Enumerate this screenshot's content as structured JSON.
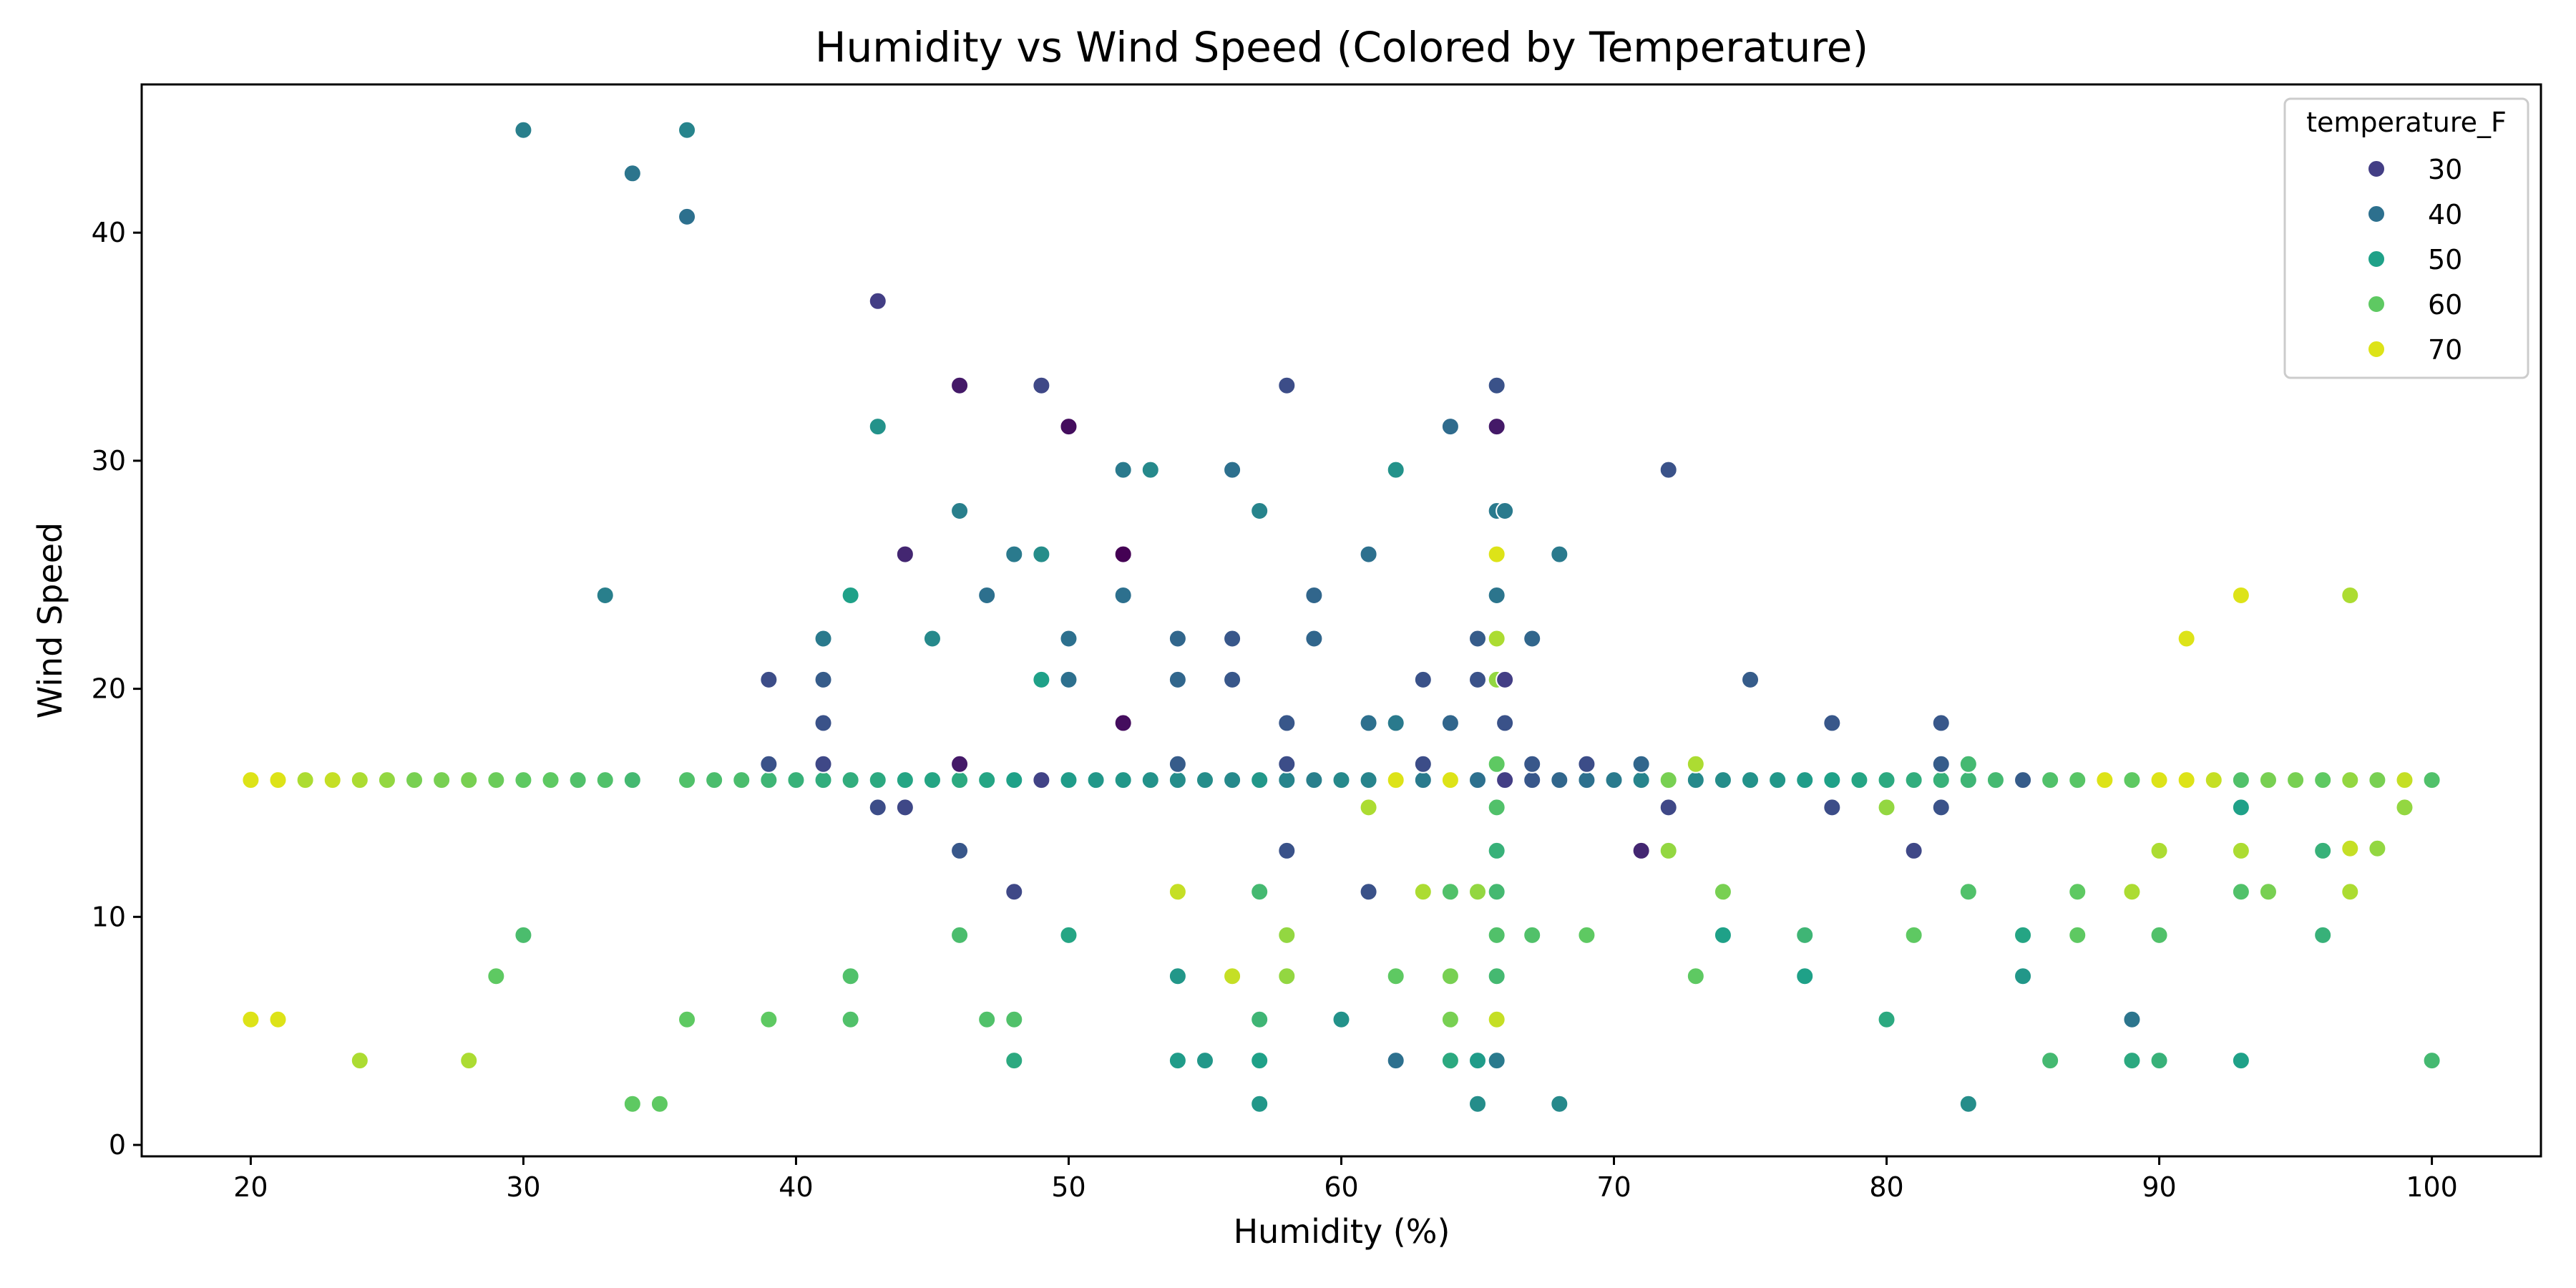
{
  "chart_data": {
    "type": "scatter",
    "title": "Humidity vs Wind Speed (Colored by Temperature)",
    "xlabel": "Humidity (%)",
    "ylabel": "Wind Speed",
    "xlim": [
      16,
      104
    ],
    "ylim": [
      -0.5,
      46.5
    ],
    "xticks": [
      20,
      30,
      40,
      50,
      60,
      70,
      80,
      90,
      100
    ],
    "yticks": [
      0,
      10,
      20,
      30,
      40
    ],
    "grid": false,
    "color_by": "temperature_F",
    "legend": {
      "title": "temperature_F",
      "position": "top-right",
      "entries": [
        {
          "label": "30",
          "color": "#433e85"
        },
        {
          "label": "40",
          "color": "#2d708e"
        },
        {
          "label": "50",
          "color": "#1fa188"
        },
        {
          "label": "60",
          "color": "#5ec962"
        },
        {
          "label": "70",
          "color": "#dde318"
        }
      ]
    },
    "color_scale": [
      [
        25,
        "#440154"
      ],
      [
        30,
        "#433e85"
      ],
      [
        40,
        "#2d708e"
      ],
      [
        50,
        "#1fa188"
      ],
      [
        60,
        "#5ec962"
      ],
      [
        65,
        "#a0da39"
      ],
      [
        70,
        "#dde318"
      ],
      [
        72,
        "#fde725"
      ]
    ],
    "point_fields": [
      "humidity",
      "wind_speed",
      "temperature_F"
    ],
    "points": [
      [
        20,
        16,
        70
      ],
      [
        21,
        16,
        70
      ],
      [
        22,
        16,
        66
      ],
      [
        23,
        16,
        68
      ],
      [
        24,
        16,
        66
      ],
      [
        25,
        16,
        64
      ],
      [
        26,
        16,
        62
      ],
      [
        27,
        16,
        62
      ],
      [
        28,
        16,
        62
      ],
      [
        29,
        16,
        61
      ],
      [
        30,
        16,
        60
      ],
      [
        31,
        16,
        60
      ],
      [
        32,
        16,
        58
      ],
      [
        33,
        16,
        58
      ],
      [
        34,
        16,
        56
      ],
      [
        36,
        16,
        58
      ],
      [
        37,
        16,
        57
      ],
      [
        38,
        16,
        57
      ],
      [
        39,
        16,
        55
      ],
      [
        40,
        16,
        54
      ],
      [
        41,
        16,
        53
      ],
      [
        42,
        16,
        53
      ],
      [
        43,
        16,
        52
      ],
      [
        44,
        16,
        51
      ],
      [
        45,
        16,
        51
      ],
      [
        46,
        16,
        52
      ],
      [
        47,
        16,
        51
      ],
      [
        48,
        16,
        50
      ],
      [
        49,
        16,
        49
      ],
      [
        50,
        16,
        49
      ],
      [
        51,
        16,
        48
      ],
      [
        52,
        16,
        48
      ],
      [
        53,
        16,
        47
      ],
      [
        54,
        16,
        46
      ],
      [
        55,
        16,
        46
      ],
      [
        56,
        16,
        45
      ],
      [
        57,
        16,
        48
      ],
      [
        58,
        16,
        44
      ],
      [
        59,
        16,
        43
      ],
      [
        60,
        16,
        45
      ],
      [
        61,
        16,
        44
      ],
      [
        62,
        16,
        70
      ],
      [
        63,
        16,
        42
      ],
      [
        64,
        16,
        70
      ],
      [
        65,
        16,
        40
      ],
      [
        66,
        16,
        30
      ],
      [
        67,
        16,
        35
      ],
      [
        68,
        16,
        38
      ],
      [
        69,
        16,
        40
      ],
      [
        70,
        16,
        42
      ],
      [
        71,
        16,
        44
      ],
      [
        72,
        16,
        62
      ],
      [
        73,
        16,
        45
      ],
      [
        74,
        16,
        46
      ],
      [
        75,
        16,
        47
      ],
      [
        76,
        16,
        48
      ],
      [
        77,
        16,
        49
      ],
      [
        78,
        16,
        50
      ],
      [
        79,
        16,
        51
      ],
      [
        80,
        16,
        52
      ],
      [
        81,
        16,
        53
      ],
      [
        82,
        16,
        54
      ],
      [
        83,
        16,
        55
      ],
      [
        84,
        16,
        56
      ],
      [
        85,
        16,
        57
      ],
      [
        86,
        16,
        58
      ],
      [
        87,
        16,
        59
      ],
      [
        88,
        16,
        70
      ],
      [
        89,
        16,
        60
      ],
      [
        90,
        16,
        70
      ],
      [
        91,
        16,
        70
      ],
      [
        92,
        16,
        68
      ],
      [
        93,
        16,
        66
      ],
      [
        94,
        16,
        62
      ],
      [
        95,
        16,
        62
      ],
      [
        96,
        16,
        60
      ],
      [
        97,
        16,
        64
      ],
      [
        98,
        16,
        62
      ],
      [
        99,
        16,
        68
      ],
      [
        100,
        16,
        58
      ],
      [
        20,
        5.5,
        70
      ],
      [
        21,
        5.5,
        70
      ],
      [
        24,
        3.7,
        66
      ],
      [
        28,
        3.7,
        66
      ],
      [
        29,
        7.4,
        60
      ],
      [
        30,
        9.2,
        57
      ],
      [
        33,
        24.1,
        43
      ],
      [
        30,
        44.5,
        43
      ],
      [
        34,
        42.6,
        41
      ],
      [
        36,
        44.5,
        44
      ],
      [
        36,
        40.7,
        40
      ],
      [
        34,
        1.8,
        60
      ],
      [
        35,
        1.8,
        60
      ],
      [
        36,
        5.5,
        60
      ],
      [
        39,
        20.4,
        33
      ],
      [
        39,
        16.7,
        34
      ],
      [
        39,
        5.5,
        60
      ],
      [
        41,
        22.2,
        42
      ],
      [
        41,
        20.4,
        36
      ],
      [
        41,
        18.5,
        34
      ],
      [
        41,
        16.7,
        32
      ],
      [
        42,
        24.1,
        50
      ],
      [
        42,
        7.4,
        58
      ],
      [
        42,
        5.5,
        58
      ],
      [
        43,
        37,
        30
      ],
      [
        43,
        31.5,
        47
      ],
      [
        43,
        14.8,
        33
      ],
      [
        44,
        25.9,
        28
      ],
      [
        44,
        14.8,
        32
      ],
      [
        45,
        22.2,
        45
      ],
      [
        46,
        33.3,
        27
      ],
      [
        46,
        27.8,
        43
      ],
      [
        46,
        16.7,
        27
      ],
      [
        46,
        12.9,
        35
      ],
      [
        46,
        9.2,
        57
      ],
      [
        47,
        24.1,
        40
      ],
      [
        47,
        5.5,
        58
      ],
      [
        48,
        25.9,
        42
      ],
      [
        48,
        11.1,
        32
      ],
      [
        48,
        5.5,
        58
      ],
      [
        48,
        3.7,
        52
      ],
      [
        49,
        33.3,
        32
      ],
      [
        49,
        25.9,
        46
      ],
      [
        49,
        20.4,
        50
      ],
      [
        49,
        16,
        31
      ],
      [
        50,
        31.5,
        26
      ],
      [
        50,
        22.2,
        40
      ],
      [
        50,
        20.4,
        40
      ],
      [
        50,
        9.2,
        51
      ],
      [
        52,
        29.6,
        42
      ],
      [
        52,
        25.9,
        25
      ],
      [
        52,
        24.1,
        40
      ],
      [
        52,
        18.5,
        26
      ],
      [
        53,
        29.6,
        45
      ],
      [
        54,
        22.2,
        38
      ],
      [
        54,
        20.4,
        38
      ],
      [
        54,
        16.7,
        36
      ],
      [
        54,
        11.1,
        68
      ],
      [
        54,
        7.4,
        48
      ],
      [
        54,
        3.7,
        49
      ],
      [
        55,
        3.7,
        48
      ],
      [
        56,
        29.6,
        40
      ],
      [
        56,
        22.2,
        35
      ],
      [
        56,
        20.4,
        35
      ],
      [
        56,
        7.4,
        68
      ],
      [
        57,
        27.8,
        44
      ],
      [
        57,
        11.1,
        56
      ],
      [
        57,
        5.5,
        55
      ],
      [
        57,
        3.7,
        50
      ],
      [
        57,
        1.8,
        48
      ],
      [
        58,
        33.3,
        33
      ],
      [
        58,
        18.5,
        35
      ],
      [
        58,
        16.7,
        33
      ],
      [
        58,
        12.9,
        34
      ],
      [
        58,
        9.2,
        64
      ],
      [
        58,
        7.4,
        64
      ],
      [
        59,
        24.1,
        38
      ],
      [
        59,
        22.2,
        38
      ],
      [
        60,
        5.5,
        47
      ],
      [
        61,
        25.9,
        40
      ],
      [
        61,
        18.5,
        40
      ],
      [
        61,
        14.8,
        66
      ],
      [
        61,
        11.1,
        34
      ],
      [
        62,
        29.6,
        47
      ],
      [
        62,
        18.5,
        42
      ],
      [
        62,
        7.4,
        60
      ],
      [
        62,
        3.7,
        40
      ],
      [
        63,
        20.4,
        34
      ],
      [
        63,
        16.7,
        33
      ],
      [
        63,
        11.1,
        66
      ],
      [
        64,
        31.5,
        39
      ],
      [
        64,
        18.5,
        38
      ],
      [
        64,
        11.1,
        58
      ],
      [
        64,
        7.4,
        62
      ],
      [
        64,
        5.5,
        62
      ],
      [
        64,
        3.7,
        52
      ],
      [
        65,
        22.2,
        36
      ],
      [
        65,
        20.4,
        34
      ],
      [
        65,
        11.1,
        64
      ],
      [
        65,
        3.7,
        49
      ],
      [
        65,
        1.8,
        46
      ],
      [
        65.7,
        33.3,
        34
      ],
      [
        65.7,
        31.5,
        27
      ],
      [
        65.7,
        27.8,
        42
      ],
      [
        65.7,
        25.9,
        70
      ],
      [
        65.7,
        24.1,
        41
      ],
      [
        65.7,
        22.2,
        66
      ],
      [
        65.7,
        20.4,
        64
      ],
      [
        65.7,
        16.7,
        60
      ],
      [
        65.7,
        14.8,
        58
      ],
      [
        65.7,
        12.9,
        54
      ],
      [
        65.7,
        11.1,
        56
      ],
      [
        65.7,
        9.2,
        58
      ],
      [
        65.7,
        7.4,
        56
      ],
      [
        65.7,
        5.5,
        68
      ],
      [
        65.7,
        3.7,
        42
      ],
      [
        66,
        27.8,
        42
      ],
      [
        66,
        20.4,
        30
      ],
      [
        66,
        18.5,
        34
      ],
      [
        67,
        22.2,
        38
      ],
      [
        67,
        16.7,
        35
      ],
      [
        67,
        9.2,
        58
      ],
      [
        68,
        25.9,
        42
      ],
      [
        68,
        1.8,
        45
      ],
      [
        69,
        16.7,
        33
      ],
      [
        69,
        9.2,
        60
      ],
      [
        71,
        16.7,
        38
      ],
      [
        71,
        12.9,
        28
      ],
      [
        72,
        29.6,
        34
      ],
      [
        72,
        14.8,
        32
      ],
      [
        72,
        12.9,
        64
      ],
      [
        73,
        16.7,
        66
      ],
      [
        73,
        7.4,
        60
      ],
      [
        74,
        11.1,
        62
      ],
      [
        74,
        9.2,
        50
      ],
      [
        75,
        20.4,
        36
      ],
      [
        77,
        9.2,
        55
      ],
      [
        77,
        7.4,
        50
      ],
      [
        78,
        18.5,
        35
      ],
      [
        78,
        14.8,
        33
      ],
      [
        80,
        14.8,
        64
      ],
      [
        80,
        5.5,
        52
      ],
      [
        81,
        12.9,
        32
      ],
      [
        81,
        9.2,
        60
      ],
      [
        82,
        18.5,
        35
      ],
      [
        82,
        16.7,
        36
      ],
      [
        82,
        14.8,
        34
      ],
      [
        83,
        16.7,
        56
      ],
      [
        83,
        11.1,
        58
      ],
      [
        83,
        1.8,
        46
      ],
      [
        85,
        16,
        36
      ],
      [
        85,
        9.2,
        51
      ],
      [
        85,
        7.4,
        48
      ],
      [
        86,
        3.7,
        56
      ],
      [
        87,
        11.1,
        60
      ],
      [
        87,
        9.2,
        60
      ],
      [
        89,
        11.1,
        66
      ],
      [
        89,
        5.5,
        41
      ],
      [
        89,
        3.7,
        52
      ],
      [
        90,
        12.9,
        66
      ],
      [
        90,
        9.2,
        58
      ],
      [
        90,
        3.7,
        54
      ],
      [
        91,
        22.2,
        70
      ],
      [
        93,
        24.1,
        70
      ],
      [
        93,
        16,
        58
      ],
      [
        93,
        14.8,
        50
      ],
      [
        93,
        12.9,
        66
      ],
      [
        93,
        11.1,
        58
      ],
      [
        93,
        3.7,
        50
      ],
      [
        94,
        11.1,
        62
      ],
      [
        96,
        12.9,
        54
      ],
      [
        96,
        9.2,
        54
      ],
      [
        97,
        24.1,
        66
      ],
      [
        97,
        13,
        68
      ],
      [
        97,
        11.1,
        66
      ],
      [
        98,
        13,
        64
      ],
      [
        99,
        14.8,
        64
      ],
      [
        100,
        3.7,
        56
      ]
    ]
  }
}
